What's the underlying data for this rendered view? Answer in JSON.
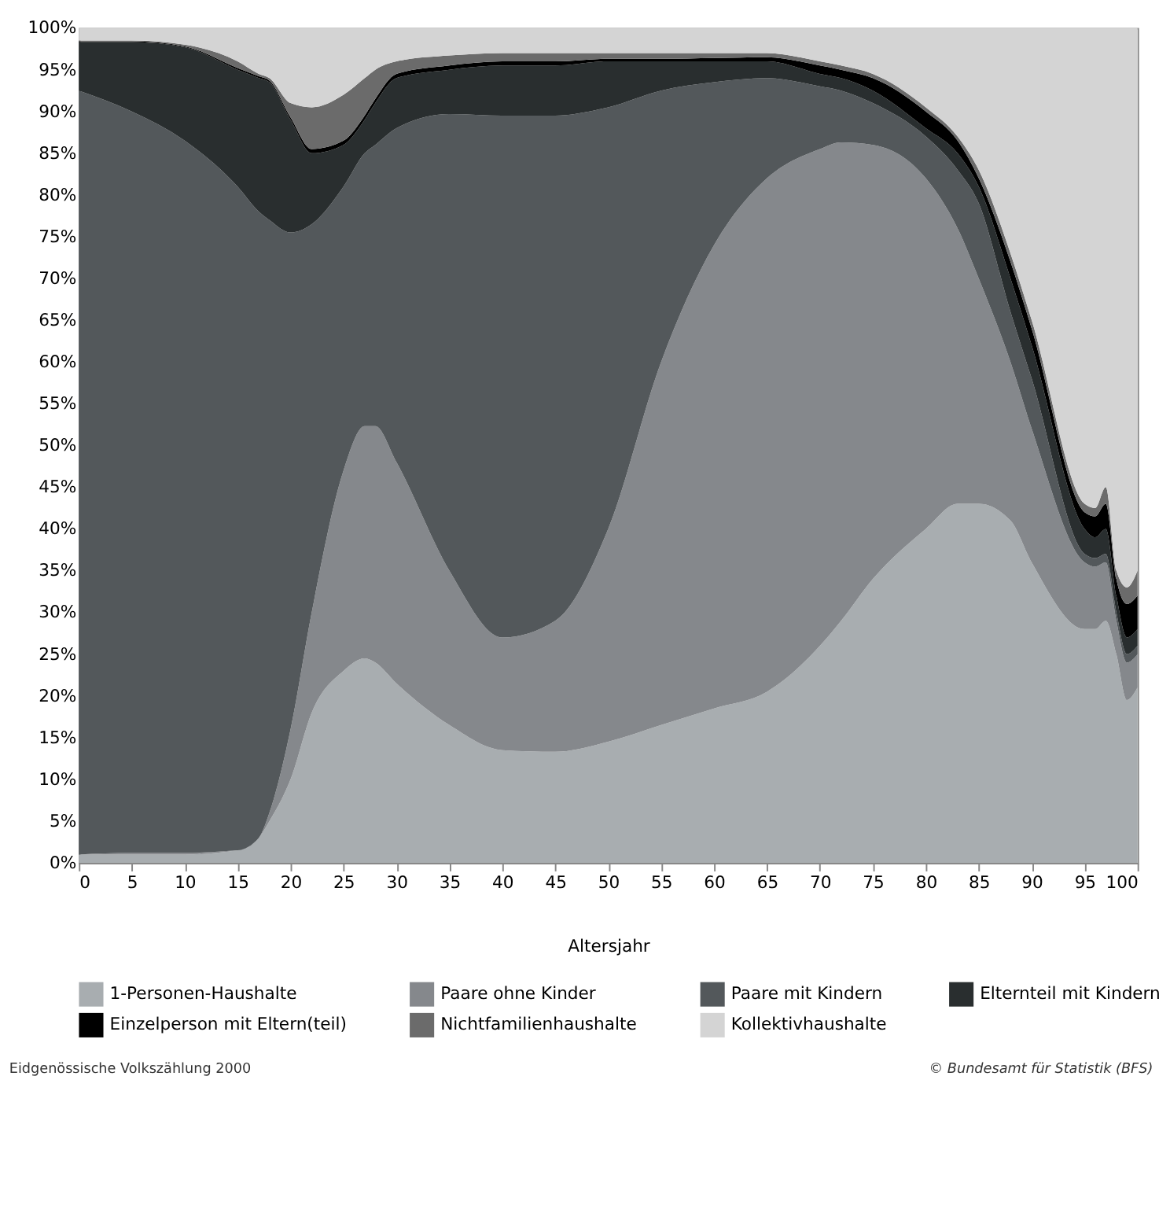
{
  "chart_data": {
    "type": "area",
    "stacked": true,
    "xlabel": "Altersjahr",
    "legend": "bottom",
    "grid": false,
    "x": [
      0,
      5,
      10,
      15,
      17,
      18,
      20,
      22,
      25,
      27,
      28,
      30,
      35,
      40,
      45,
      50,
      55,
      60,
      65,
      70,
      72,
      75,
      80,
      83,
      85,
      88,
      90,
      95,
      96,
      97,
      98,
      99,
      100
    ],
    "xlim": [
      0,
      100
    ],
    "xticks": [
      0,
      5,
      10,
      15,
      20,
      25,
      30,
      35,
      40,
      45,
      50,
      55,
      60,
      65,
      70,
      75,
      80,
      85,
      90,
      95,
      100
    ],
    "ylim": [
      0,
      100
    ],
    "yticks": [
      {
        "value": 0,
        "label": "0%"
      },
      {
        "value": 5,
        "label": "5%"
      },
      {
        "value": 10,
        "label": "10%"
      },
      {
        "value": 15,
        "label": "15%"
      },
      {
        "value": 20,
        "label": "20%"
      },
      {
        "value": 25,
        "label": "25%"
      },
      {
        "value": 30,
        "label": "30%"
      },
      {
        "value": 35,
        "label": "35%"
      },
      {
        "value": 40,
        "label": "40%"
      },
      {
        "value": 45,
        "label": "45%"
      },
      {
        "value": 50,
        "label": "50%"
      },
      {
        "value": 55,
        "label": "55%"
      },
      {
        "value": 60,
        "label": "60%"
      },
      {
        "value": 65,
        "label": "65%"
      },
      {
        "value": 70,
        "label": "70%"
      },
      {
        "value": 75,
        "label": "75%"
      },
      {
        "value": 80,
        "label": "80%"
      },
      {
        "value": 85,
        "label": "85%"
      },
      {
        "value": 90,
        "label": "90%"
      },
      {
        "value": 95,
        "label": "95%"
      },
      {
        "value": 100,
        "label": "100%"
      }
    ],
    "series": [
      {
        "name": "1-Personen-Haushalte",
        "color": "#a8adb0",
        "values": [
          1,
          1,
          1,
          1.5,
          3,
          5,
          10,
          18,
          23,
          24.5,
          24,
          21.5,
          16.5,
          13.5,
          13.3,
          14.5,
          16.5,
          18.5,
          20.5,
          26,
          29,
          34,
          40,
          43,
          43,
          41,
          36,
          28,
          28,
          29,
          25,
          19.5,
          21
        ]
      },
      {
        "name": "Paare ohne Kinder",
        "color": "#85888c",
        "values": [
          0,
          0.2,
          0.2,
          0,
          0,
          1,
          6,
          12,
          24,
          27.8,
          28.3,
          26.5,
          18.5,
          13.5,
          15.7,
          25.5,
          43.5,
          55.5,
          61.5,
          59.5,
          57.3,
          52,
          42,
          33,
          27,
          19,
          16,
          8,
          7.5,
          7,
          4,
          4.5,
          4
        ]
      },
      {
        "name": "Paare mit Kindern",
        "color": "#53585b",
        "values": [
          91.5,
          88.8,
          85.3,
          79.5,
          75,
          71,
          59.5,
          46.5,
          34,
          32.7,
          33.7,
          40,
          54.7,
          62.5,
          60.5,
          50.5,
          32.5,
          19.5,
          12,
          7.5,
          6.2,
          5,
          5,
          7,
          9,
          6,
          6,
          1,
          1,
          1,
          1,
          1,
          1
        ]
      },
      {
        "name": "Elternteil mit Kindern",
        "color": "#292e2f",
        "values": [
          5.8,
          8.3,
          11.2,
          14,
          16,
          16.5,
          13.5,
          8.5,
          5,
          4,
          5,
          6,
          5.3,
          6,
          6,
          5.5,
          3.5,
          2.5,
          2,
          1.5,
          1.5,
          1.5,
          1,
          2,
          2,
          4,
          4,
          3,
          2.5,
          3,
          2,
          2,
          2
        ]
      },
      {
        "name": "Einzelperson mit Eltern(teil)",
        "color": "#000000",
        "values": [
          0.1,
          0.1,
          0.1,
          0.2,
          0.2,
          0.2,
          0.3,
          0.5,
          0.5,
          0.5,
          0.5,
          0.5,
          0.5,
          0.5,
          0.5,
          0.3,
          0.3,
          0.4,
          0.5,
          1,
          1,
          1.5,
          2,
          1.5,
          1,
          2,
          2,
          2,
          2.5,
          3,
          2,
          4,
          4
        ]
      },
      {
        "name": "Nichtfamilienhaushalte",
        "color": "#6b6b6b",
        "values": [
          0.1,
          0.1,
          0.2,
          0.8,
          0.3,
          0.3,
          1.7,
          5,
          5.5,
          4.5,
          3.5,
          1.5,
          1.2,
          1,
          1,
          0.7,
          0.7,
          0.6,
          0.5,
          0.5,
          0.5,
          0.5,
          0.5,
          0.5,
          1,
          1,
          1,
          1,
          1,
          2,
          1,
          2,
          3
        ]
      },
      {
        "name": "Kollektivhaushalte",
        "color": "#d4d4d4",
        "values": [
          1.5,
          1.5,
          2,
          4,
          5.5,
          6,
          9,
          9.5,
          8,
          6,
          5,
          4,
          3.3,
          3,
          3,
          3,
          3,
          3,
          3,
          4,
          4.5,
          5.5,
          9.5,
          13,
          17,
          27,
          35,
          57,
          57.5,
          55,
          65,
          67,
          65
        ]
      }
    ],
    "annotations": [
      "Eidgenössische Volkszählung 2000",
      "© Bundesamt für Statistik (BFS)"
    ]
  }
}
